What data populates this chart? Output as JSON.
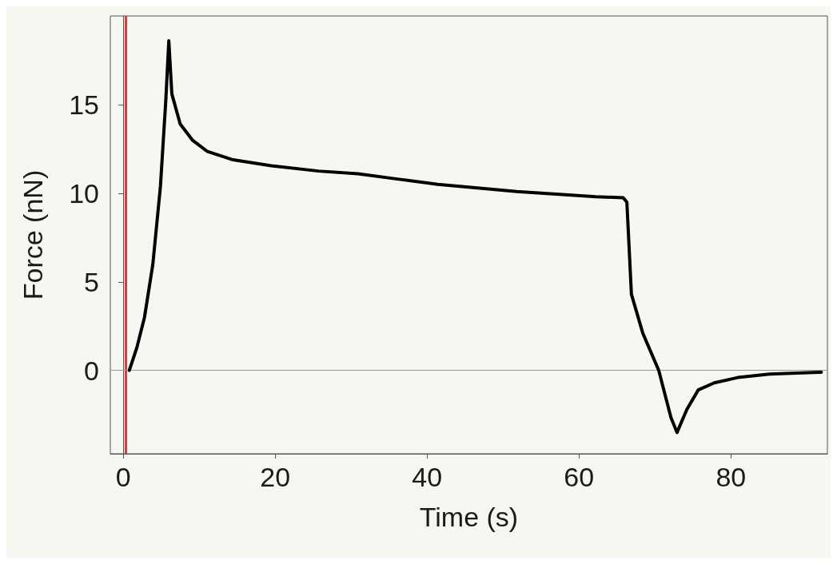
{
  "chart_data": {
    "type": "line",
    "xlabel": "Time (s)",
    "ylabel": "Force (nN)",
    "xlim": [
      -1.7,
      92.7
    ],
    "ylim": [
      -4.7,
      20
    ],
    "xticks": [
      0,
      20,
      40,
      60,
      80
    ],
    "yticks": [
      0,
      5,
      10,
      15
    ],
    "marker": "none",
    "line_style": "solid",
    "series": [
      {
        "color": "#000000",
        "x": [
          0.8,
          1.8,
          2.8,
          3.9,
          4.9,
          5.6,
          6.0,
          6.4,
          7.5,
          9.1,
          11.1,
          14.3,
          19.5,
          25.7,
          30.9,
          36.1,
          41.4,
          46.6,
          51.8,
          57,
          62.2,
          65.8,
          66.3,
          66.9,
          68.4,
          70.5,
          72.1,
          72.9,
          74.2,
          75.7,
          77.8,
          80.9,
          85.1,
          91.9
        ],
        "values": [
          0,
          1.3,
          3,
          6,
          10.4,
          15.2,
          18.6,
          15.6,
          13.9,
          13,
          12.35,
          11.9,
          11.55,
          11.25,
          11.1,
          10.8,
          10.5,
          10.3,
          10.1,
          9.95,
          9.8,
          9.75,
          9.5,
          4.3,
          2.1,
          0,
          -2.65,
          -3.5,
          -2.2,
          -1.1,
          -0.7,
          -0.4,
          -0.2,
          -0.1
        ]
      }
    ],
    "ref_lines": [
      {
        "axis": "x",
        "value": 0.3,
        "color": "#e8363c"
      },
      {
        "axis": "y",
        "value": 0,
        "color": "#9a9a9a"
      }
    ]
  }
}
